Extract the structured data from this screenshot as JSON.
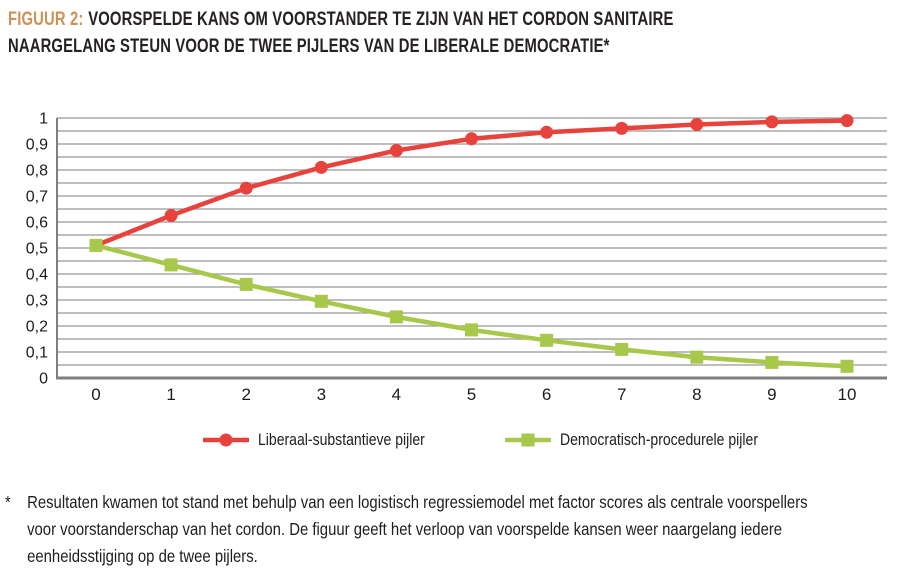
{
  "header": {
    "figure_label": "FIGUUR 2:",
    "title_line1": "VOORSPELDE KANS OM VOORSTANDER TE ZIJN VAN HET CORDON SANITAIRE",
    "title_line2": "NAARGELANG STEUN VOOR DE TWEE PIJLERS VAN DE LIBERALE DEMOCRATIE*",
    "figure_label_color": "#cd9257",
    "title_color": "#262223"
  },
  "chart_data": {
    "type": "line",
    "x": [
      0,
      1,
      2,
      3,
      4,
      5,
      6,
      7,
      8,
      9,
      10
    ],
    "series": [
      {
        "name": "Liberaal-substantieve pijler",
        "color": "#e8423c",
        "marker": "circle",
        "values": [
          0.51,
          0.625,
          0.73,
          0.81,
          0.875,
          0.92,
          0.945,
          0.96,
          0.975,
          0.985,
          0.99
        ]
      },
      {
        "name": "Democratisch-procedurele pijler",
        "color": "#a7c84b",
        "marker": "square",
        "values": [
          0.51,
          0.435,
          0.36,
          0.295,
          0.235,
          0.185,
          0.145,
          0.11,
          0.08,
          0.06,
          0.045
        ]
      }
    ],
    "ylim": [
      0,
      1
    ],
    "ytick_labels": [
      "0",
      "0,1",
      "0,2",
      "0,3",
      "0,4",
      "0,5",
      "0,6",
      "0,7",
      "0,8",
      "0,9",
      "1"
    ],
    "xtick_labels": [
      "0",
      "1",
      "2",
      "3",
      "4",
      "5",
      "6",
      "7",
      "8",
      "9",
      "10"
    ],
    "decimal_separator": ",",
    "grid": true,
    "grid_step": 0.05,
    "grid_color": "#989898",
    "axis_color": "#7f7f7f",
    "tick_label_color": "#1d1d1b",
    "legend_position": "bottom"
  },
  "footnote": {
    "marker": "*",
    "lines": [
      "Resultaten kwamen tot stand met behulp van een logistisch regressiemodel met factor scores als centrale voorspellers",
      "voor voorstanderschap van het cordon. De figuur geeft het verloop van voorspelde kansen weer naargelang iedere",
      "eenheidsstijging op de twee pijlers."
    ]
  }
}
